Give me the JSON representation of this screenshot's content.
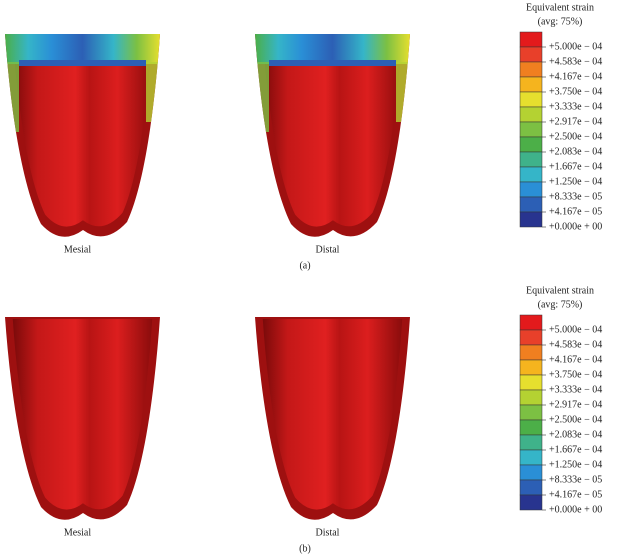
{
  "panels": [
    {
      "label": "(a)",
      "views": [
        {
          "label": "Mesial"
        },
        {
          "label": "Distal"
        }
      ],
      "legend": {
        "title": "Equivalent strain",
        "subtitle": "(avg: 75%)",
        "entries": [
          "+5.000e − 04",
          "+4.583e − 04",
          "+4.167e − 04",
          "+3.750e − 04",
          "+3.333e − 04",
          "+2.917e − 04",
          "+2.500e − 04",
          "+2.083e − 04",
          "+1.667e − 04",
          "+1.250e − 04",
          "+8.333e − 05",
          "+4.167e − 05",
          "+0.000e + 00"
        ]
      }
    },
    {
      "label": "(b)",
      "views": [
        {
          "label": "Mesial"
        },
        {
          "label": "Distal"
        }
      ],
      "legend": {
        "title": "Equivalent strain",
        "subtitle": "(avg: 75%)",
        "entries": [
          "+5.000e − 04",
          "+4.583e − 04",
          "+4.167e − 04",
          "+3.750e − 04",
          "+3.333e − 04",
          "+2.917e − 04",
          "+2.500e − 04",
          "+2.083e − 04",
          "+1.667e − 04",
          "+1.250e − 04",
          "+8.333e − 05",
          "+4.167e − 05",
          "+0.000e + 00"
        ]
      }
    }
  ],
  "legend_colors": [
    "#e31a1c",
    "#e8402a",
    "#f07f20",
    "#f5b41e",
    "#e6df2e",
    "#b4d232",
    "#7cc043",
    "#4caf48",
    "#3fb28a",
    "#35b5c8",
    "#2a8fd6",
    "#2c5fb5",
    "#28348f"
  ]
}
